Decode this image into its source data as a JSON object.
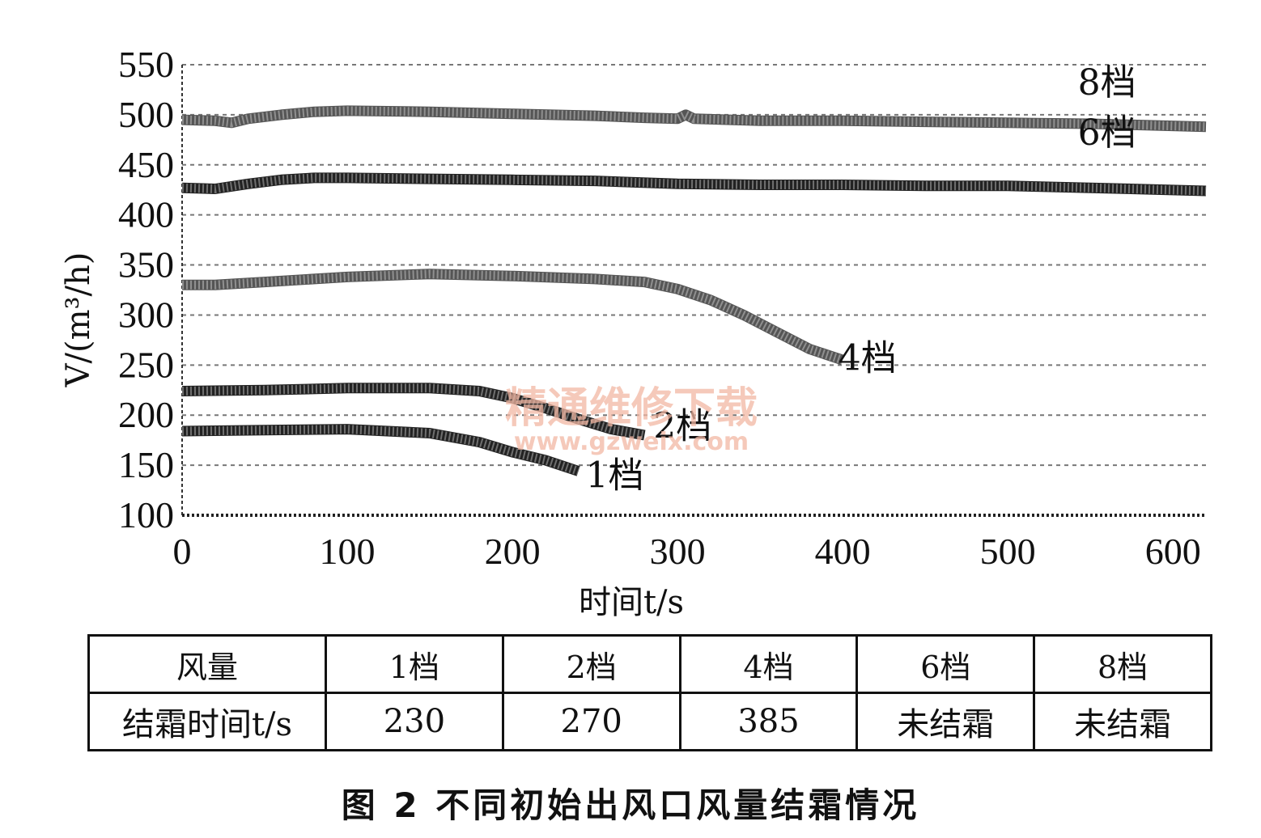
{
  "chart_data": {
    "type": "line",
    "xlabel": "时间t/s",
    "ylabel": "V/(m³/h)",
    "xlim": [
      0,
      620
    ],
    "ylim": [
      100,
      550
    ],
    "xticks": [
      0,
      100,
      200,
      300,
      400,
      500,
      600
    ],
    "yticks": [
      100,
      150,
      200,
      250,
      300,
      350,
      400,
      450,
      500,
      550
    ],
    "grid": "horizontal-dashed",
    "series": [
      {
        "name": "8档",
        "color": "#555555",
        "x": [
          0,
          20,
          30,
          40,
          60,
          80,
          100,
          150,
          200,
          250,
          280,
          300,
          305,
          310,
          350,
          400,
          450,
          500,
          550,
          620
        ],
        "y": [
          495,
          494,
          492,
          496,
          500,
          503,
          504,
          503,
          501,
          499,
          497,
          496,
          500,
          496,
          494,
          494,
          493,
          492,
          491,
          488
        ]
      },
      {
        "name": "6档",
        "color": "#222222",
        "x": [
          0,
          20,
          40,
          60,
          80,
          100,
          150,
          200,
          250,
          300,
          350,
          400,
          450,
          500,
          550,
          620
        ],
        "y": [
          427,
          426,
          431,
          435,
          437,
          437,
          436,
          435,
          434,
          431,
          430,
          430,
          429,
          429,
          427,
          424
        ]
      },
      {
        "name": "4档",
        "color": "#555555",
        "x": [
          0,
          20,
          50,
          100,
          150,
          200,
          250,
          280,
          300,
          320,
          340,
          360,
          380,
          400
        ],
        "y": [
          330,
          330,
          333,
          338,
          341,
          339,
          336,
          333,
          326,
          315,
          300,
          283,
          266,
          255
        ]
      },
      {
        "name": "2档",
        "color": "#222222",
        "x": [
          0,
          50,
          100,
          150,
          180,
          200,
          220,
          240,
          260,
          280
        ],
        "y": [
          224,
          225,
          227,
          227,
          224,
          217,
          207,
          196,
          186,
          180
        ]
      },
      {
        "name": "1档",
        "color": "#222222",
        "x": [
          0,
          50,
          100,
          150,
          180,
          200,
          220,
          240
        ],
        "y": [
          184,
          185,
          186,
          182,
          173,
          163,
          155,
          144
        ]
      }
    ],
    "annotations": [
      "8档",
      "6档",
      "4档",
      "2档",
      "1档"
    ]
  },
  "watermark": {
    "line1": "精通维修下载",
    "line2": "www.gzweix.com"
  },
  "table": {
    "header_label": "风量",
    "row_label": "结霜时间t/s",
    "columns": [
      "1档",
      "2档",
      "4档",
      "6档",
      "8档"
    ],
    "values": [
      "230",
      "270",
      "385",
      "未结霜",
      "未结霜"
    ]
  },
  "caption": "图 2   不同初始出风口风量结霜情况"
}
